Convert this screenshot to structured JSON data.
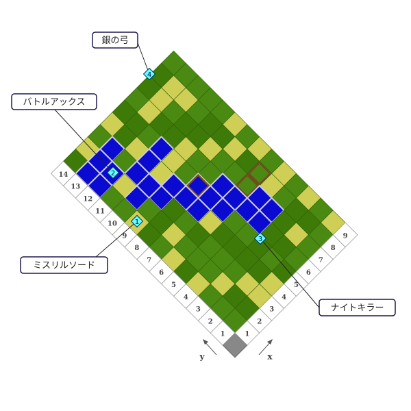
{
  "callouts": [
    {
      "label": "銀の弓",
      "marker": "4"
    },
    {
      "label": "バトルアックス",
      "marker": "2"
    },
    {
      "label": "ミスリルソード",
      "marker": "1"
    },
    {
      "label": "ナイトキラー",
      "marker": "3"
    }
  ],
  "axes": {
    "x": {
      "label": "x",
      "ticks": [
        "1",
        "2",
        "3",
        "4",
        "5",
        "6",
        "7",
        "8",
        "9"
      ]
    },
    "y": {
      "label": "y",
      "ticks": [
        "1",
        "2",
        "3",
        "4",
        "5",
        "6",
        "7",
        "8",
        "9",
        "10",
        "11",
        "12",
        "13",
        "14"
      ]
    }
  }
}
